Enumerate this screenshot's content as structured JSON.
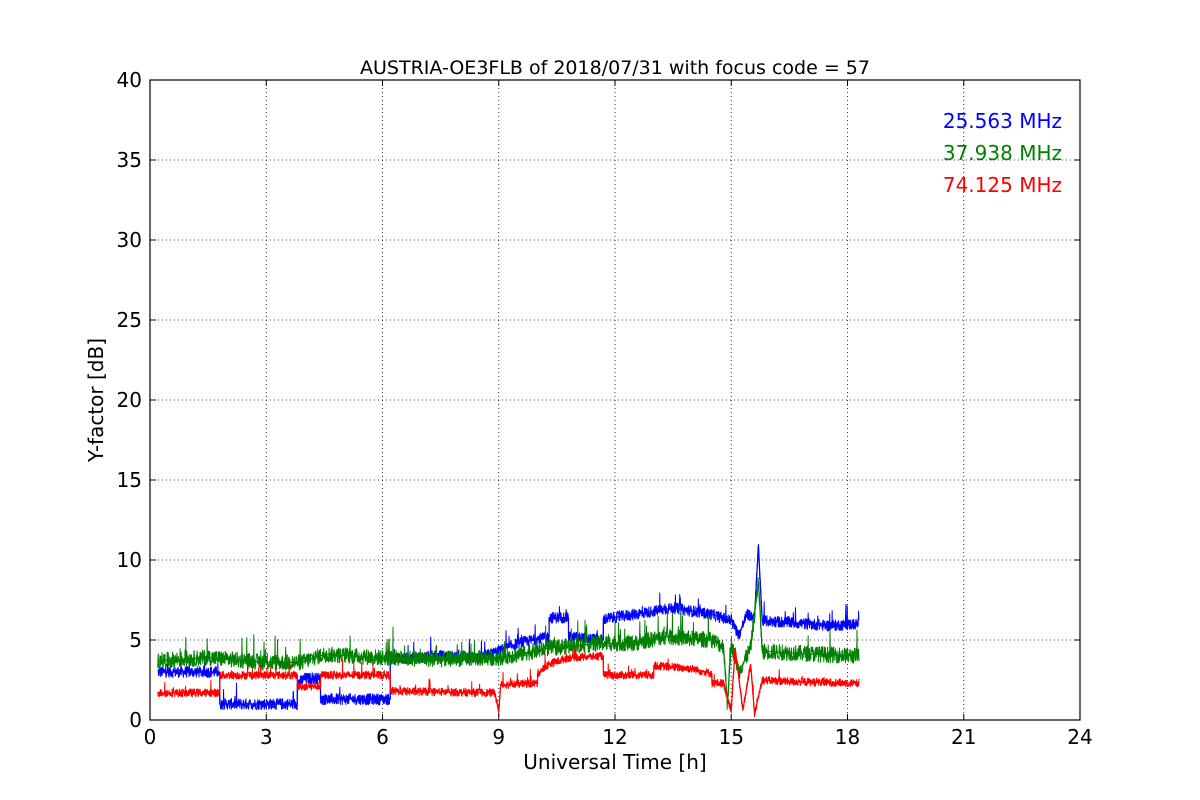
{
  "chart_data": {
    "type": "line",
    "title": "AUSTRIA-OE3FLB of 2018/07/31 with focus code = 57",
    "xlabel": "Universal Time [h]",
    "ylabel": "Y-factor [dB]",
    "xlim": [
      0,
      24
    ],
    "ylim": [
      0,
      40
    ],
    "xticks": [
      "0",
      "3",
      "6",
      "9",
      "12",
      "15",
      "18",
      "21",
      "24"
    ],
    "yticks": [
      "0",
      "5",
      "10",
      "15",
      "20",
      "25",
      "30",
      "35",
      "40"
    ],
    "grid": true,
    "legend_position": "top-right",
    "series": [
      {
        "name": "25.563 MHz",
        "color": "#0000ff",
        "noise": 0.35,
        "points": [
          [
            0.2,
            3.0
          ],
          [
            1.8,
            3.0
          ],
          [
            1.8,
            1.0
          ],
          [
            3.0,
            1.0
          ],
          [
            3.8,
            1.0
          ],
          [
            3.8,
            2.3
          ],
          [
            4.0,
            2.6
          ],
          [
            4.4,
            2.6
          ],
          [
            4.4,
            1.3
          ],
          [
            5.5,
            1.3
          ],
          [
            6.2,
            1.3
          ],
          [
            6.2,
            3.8
          ],
          [
            7.5,
            4.0
          ],
          [
            8.5,
            3.9
          ],
          [
            9.0,
            4.3
          ],
          [
            9.5,
            4.8
          ],
          [
            10.3,
            5.2
          ],
          [
            10.3,
            6.4
          ],
          [
            10.8,
            6.4
          ],
          [
            10.8,
            5.2
          ],
          [
            11.7,
            5.0
          ],
          [
            11.7,
            6.3
          ],
          [
            12.5,
            6.6
          ],
          [
            13.5,
            7.0
          ],
          [
            14.5,
            6.6
          ],
          [
            15.0,
            6.2
          ],
          [
            15.2,
            5.3
          ],
          [
            15.4,
            6.6
          ],
          [
            15.6,
            6.4
          ],
          [
            15.7,
            10.9
          ],
          [
            15.8,
            6.2
          ],
          [
            16.5,
            6.1
          ],
          [
            17.5,
            5.9
          ],
          [
            18.3,
            6.0
          ]
        ]
      },
      {
        "name": "37.938 MHz",
        "color": "#008000",
        "noise": 0.5,
        "points": [
          [
            0.2,
            3.7
          ],
          [
            1.5,
            3.9
          ],
          [
            3.0,
            3.6
          ],
          [
            3.9,
            3.6
          ],
          [
            4.5,
            4.1
          ],
          [
            6.0,
            3.9
          ],
          [
            7.5,
            3.8
          ],
          [
            9.0,
            3.9
          ],
          [
            9.5,
            4.1
          ],
          [
            10.3,
            4.5
          ],
          [
            11.7,
            4.8
          ],
          [
            12.5,
            4.8
          ],
          [
            13.3,
            5.2
          ],
          [
            14.5,
            5.0
          ],
          [
            14.8,
            4.6
          ],
          [
            14.9,
            1.0
          ],
          [
            15.0,
            4.8
          ],
          [
            15.2,
            3.0
          ],
          [
            15.5,
            4.5
          ],
          [
            15.7,
            8.7
          ],
          [
            15.8,
            4.3
          ],
          [
            16.5,
            4.2
          ],
          [
            18.3,
            4.0
          ]
        ]
      },
      {
        "name": "74.125 MHz",
        "color": "#ff0000",
        "noise": 0.25,
        "points": [
          [
            0.2,
            1.7
          ],
          [
            1.8,
            1.7
          ],
          [
            1.8,
            2.8
          ],
          [
            3.8,
            2.8
          ],
          [
            3.8,
            2.1
          ],
          [
            4.4,
            2.1
          ],
          [
            4.4,
            2.8
          ],
          [
            6.2,
            2.8
          ],
          [
            6.2,
            1.8
          ],
          [
            8.9,
            1.7
          ],
          [
            9.0,
            0.5
          ],
          [
            9.05,
            2.2
          ],
          [
            10.0,
            2.3
          ],
          [
            10.0,
            2.9
          ],
          [
            10.3,
            3.5
          ],
          [
            10.8,
            3.9
          ],
          [
            11.7,
            4.0
          ],
          [
            11.7,
            2.8
          ],
          [
            13.0,
            2.8
          ],
          [
            13.0,
            3.4
          ],
          [
            14.0,
            3.2
          ],
          [
            14.5,
            2.9
          ],
          [
            14.5,
            2.3
          ],
          [
            14.8,
            2.3
          ],
          [
            15.0,
            0.6
          ],
          [
            15.1,
            4.5
          ],
          [
            15.3,
            0.6
          ],
          [
            15.5,
            3.5
          ],
          [
            15.6,
            0.4
          ],
          [
            15.8,
            2.5
          ],
          [
            16.5,
            2.4
          ],
          [
            18.3,
            2.3
          ]
        ]
      }
    ]
  }
}
